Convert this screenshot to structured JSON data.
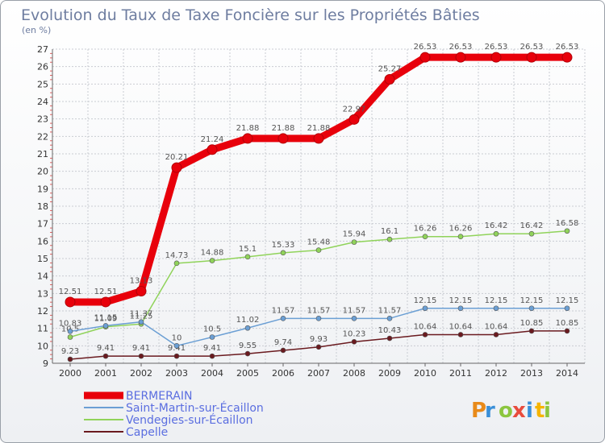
{
  "chart_data": {
    "type": "line",
    "title": "Evolution du Taux de Taxe Foncière sur les Propriétés Bâties",
    "subtitle": "(en %)",
    "x": [
      "2000",
      "2001",
      "2002",
      "2003",
      "2004",
      "2005",
      "2006",
      "2007",
      "2008",
      "2009",
      "2010",
      "2011",
      "2012",
      "2013",
      "2014"
    ],
    "ylim": [
      9,
      27
    ],
    "yticks": [
      "9",
      "10",
      "11",
      "12",
      "13",
      "14",
      "15",
      "16",
      "17",
      "18",
      "19",
      "20",
      "21",
      "22",
      "23",
      "24",
      "25",
      "26",
      "27"
    ],
    "grid": true,
    "series": [
      {
        "name": "BERMERAIN",
        "color": "#e8000b",
        "values": [
          12.51,
          12.51,
          13.13,
          20.21,
          21.24,
          21.88,
          21.88,
          21.88,
          22.97,
          25.27,
          26.53,
          26.53,
          26.53,
          26.53,
          26.53
        ],
        "labels": [
          "12.51",
          "12.51",
          "13.13",
          "20.21",
          "21.24",
          "21.88",
          "21.88",
          "21.88",
          "22.97",
          "25.27",
          "26.53",
          "26.53",
          "26.53",
          "26.53",
          "26.53"
        ]
      },
      {
        "name": "Saint-Martin-sur-Écaillon",
        "color": "#6b9fd4",
        "values": [
          10.83,
          11.15,
          11.37,
          10,
          10.5,
          11.02,
          11.57,
          11.57,
          11.57,
          11.57,
          12.15,
          12.15,
          12.15,
          12.15,
          12.15
        ],
        "labels": [
          "10.83",
          "11.15",
          "11.37",
          "10",
          "10.5",
          "11.02",
          "11.57",
          "11.57",
          "11.57",
          "11.57",
          "12.15",
          "12.15",
          "12.15",
          "12.15",
          "12.15"
        ]
      },
      {
        "name": "Vendegies-sur-Écaillon",
        "color": "#90d35a",
        "values": [
          10.5,
          11.09,
          11.25,
          14.73,
          14.88,
          15.1,
          15.33,
          15.48,
          15.94,
          16.1,
          16.26,
          16.26,
          16.42,
          16.42,
          16.58
        ],
        "labels": [
          "10.5",
          "11.09",
          "11.25",
          "14.73",
          "14.88",
          "15.1",
          "15.33",
          "15.48",
          "15.94",
          "16.1",
          "16.26",
          "16.26",
          "16.42",
          "16.42",
          "16.58"
        ]
      },
      {
        "name": "Capelle",
        "color": "#6a1a1f",
        "values": [
          9.23,
          9.41,
          9.41,
          9.41,
          9.41,
          9.55,
          9.74,
          9.93,
          10.23,
          10.43,
          10.64,
          10.64,
          10.64,
          10.85,
          10.85
        ],
        "labels": [
          "9.23",
          "9.41",
          "9.41",
          "9.41",
          "9.41",
          "9.55",
          "9.74",
          "9.93",
          "10.23",
          "10.43",
          "10.64",
          "10.64",
          "10.64",
          "10.85",
          "10.85"
        ]
      }
    ]
  },
  "logo": {
    "letters": [
      "P",
      "r",
      "o",
      "x",
      "i",
      "t",
      "i"
    ],
    "colors": [
      "#e88a1a",
      "#3a8fd8",
      "#8cc63f",
      "#e84c3d",
      "#3a8fd8",
      "#f5b400",
      "#8cc63f"
    ]
  }
}
